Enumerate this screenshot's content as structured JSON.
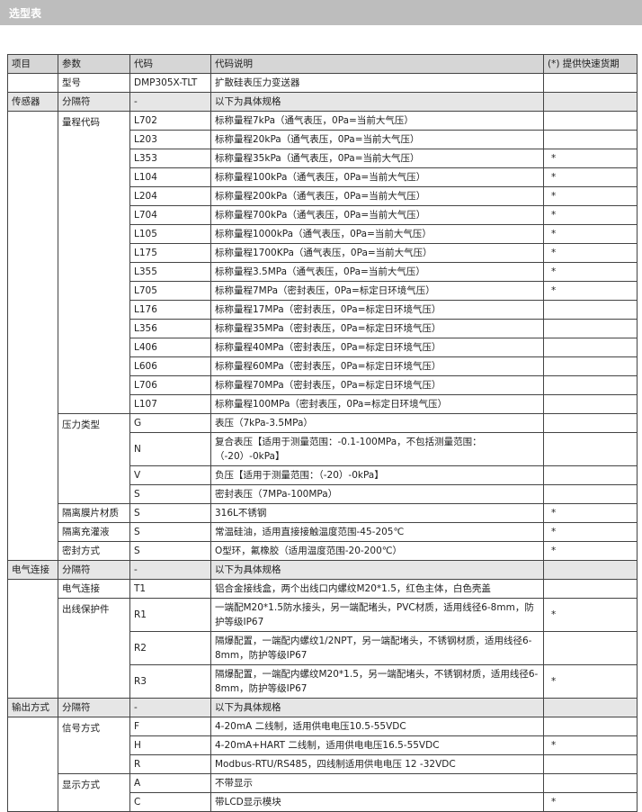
{
  "header": {
    "title": "选型表"
  },
  "table": {
    "columns": [
      "项目",
      "参数",
      "代码",
      "代码说明",
      "(*) 提供快速货期"
    ],
    "model": {
      "param": "型号",
      "code": "DMP305X-TLT",
      "desc": "扩散硅表压力变送器"
    },
    "sections": [
      {
        "item": "传感器",
        "params": [
          {
            "name": "分隔符",
            "options": [
              {
                "code": "-",
                "desc": "以下为具体规格"
              }
            ]
          },
          {
            "name": "量程代码",
            "options": [
              {
                "code": "L702",
                "desc": "标称量程7kPa（通气表压，0Pa=当前大气压）"
              },
              {
                "code": "L203",
                "desc": "标称量程20kPa（通气表压，0Pa=当前大气压）"
              },
              {
                "code": "L353",
                "desc": "标称量程35kPa（通气表压，0Pa=当前大气压）",
                "quick": "*"
              },
              {
                "code": "L104",
                "desc": "标称量程100kPa（通气表压，0Pa=当前大气压）",
                "quick": "*"
              },
              {
                "code": "L204",
                "desc": "标称量程200kPa（通气表压，0Pa=当前大气压）",
                "quick": "*"
              },
              {
                "code": "L704",
                "desc": "标称量程700kPa（通气表压，0Pa=当前大气压）",
                "quick": "*"
              },
              {
                "code": "L105",
                "desc": "标称量程1000kPa（通气表压，0Pa=当前大气压）",
                "quick": "*"
              },
              {
                "code": "L175",
                "desc": "标称量程1700KPa（通气表压，0Pa=当前大气压）",
                "quick": "*"
              },
              {
                "code": "L355",
                "desc": "标称量程3.5MPa（通气表压，0Pa=当前大气压）",
                "quick": "*"
              },
              {
                "code": "L705",
                "desc": "标称量程7MPa（密封表压，0Pa=标定日环境气压）",
                "quick": "*"
              },
              {
                "code": "L176",
                "desc": "标称量程17MPa（密封表压，0Pa=标定日环境气压）"
              },
              {
                "code": "L356",
                "desc": "标称量程35MPa（密封表压，0Pa=标定日环境气压）"
              },
              {
                "code": "L406",
                "desc": "标称量程40MPa（密封表压，0Pa=标定日环境气压）"
              },
              {
                "code": "L606",
                "desc": "标称量程60MPa（密封表压，0Pa=标定日环境气压）"
              },
              {
                "code": "L706",
                "desc": "标称量程70MPa（密封表压，0Pa=标定日环境气压）"
              },
              {
                "code": "L107",
                "desc": "标称量程100MPa（密封表压，0Pa=标定日环境气压）"
              }
            ]
          },
          {
            "name": "压力类型",
            "options": [
              {
                "code": "G",
                "desc": "表压（7kPa-3.5MPa）"
              },
              {
                "code": "N",
                "desc": "复合表压【适用于测量范围：-0.1-100MPa，不包括测量范围：（-20）-0kPa】"
              },
              {
                "code": "V",
                "desc": "负压【适用于测量范围：（-20）-0kPa】"
              },
              {
                "code": "S",
                "desc": "密封表压（7MPa-100MPa）"
              }
            ]
          },
          {
            "name": "隔离膜片材质",
            "options": [
              {
                "code": "S",
                "desc": "316L不锈钢",
                "quick": "*"
              }
            ]
          },
          {
            "name": "隔离充灌液",
            "options": [
              {
                "code": "S",
                "desc": "常温硅油，适用直接接触温度范围-45-205℃",
                "quick": "*"
              }
            ]
          },
          {
            "name": "密封方式",
            "options": [
              {
                "code": "S",
                "desc": "O型环，氟橡胶（适用温度范围-20-200℃）",
                "quick": "*"
              }
            ]
          }
        ]
      },
      {
        "item": "电气连接",
        "params": [
          {
            "name": "分隔符",
            "options": [
              {
                "code": "-",
                "desc": "以下为具体规格"
              }
            ]
          },
          {
            "name": "电气连接",
            "options": [
              {
                "code": "T1",
                "desc": "铝合金接线盒，两个出线口内螺纹M20*1.5，红色主体，白色壳盖"
              }
            ]
          },
          {
            "name": "出线保护件",
            "options": [
              {
                "code": "R1",
                "desc": "一端配M20*1.5防水接头，另一端配堵头，PVC材质，适用线径6-8mm，防护等级IP67",
                "quick": "*"
              },
              {
                "code": "R2",
                "desc": "隔爆配置，一端配内螺纹1/2NPT，另一端配堵头，不锈钢材质，适用线径6-8mm，防护等级IP67"
              },
              {
                "code": "R3",
                "desc": "隔爆配置，一端配内螺纹M20*1.5，另一端配堵头，不锈钢材质，适用线径6-8mm，防护等级IP67",
                "quick": "*"
              }
            ]
          }
        ]
      },
      {
        "item": "输出方式",
        "params": [
          {
            "name": "分隔符",
            "options": [
              {
                "code": "-",
                "desc": "以下为具体规格"
              }
            ]
          },
          {
            "name": "信号方式",
            "options": [
              {
                "code": "F",
                "desc": "4-20mA 二线制，适用供电电压10.5-55VDC"
              },
              {
                "code": "H",
                "desc": "4-20mA+HART 二线制，适用供电电压16.5-55VDC",
                "quick": "*"
              },
              {
                "code": "R",
                "desc": "Modbus-RTU/RS485，四线制适用供电电压 12 -32VDC"
              }
            ]
          },
          {
            "name": "显示方式",
            "options": [
              {
                "code": "A",
                "desc": "不带显示"
              },
              {
                "code": "C",
                "desc": "带LCD显示模块",
                "quick": "*"
              }
            ]
          }
        ]
      }
    ]
  }
}
